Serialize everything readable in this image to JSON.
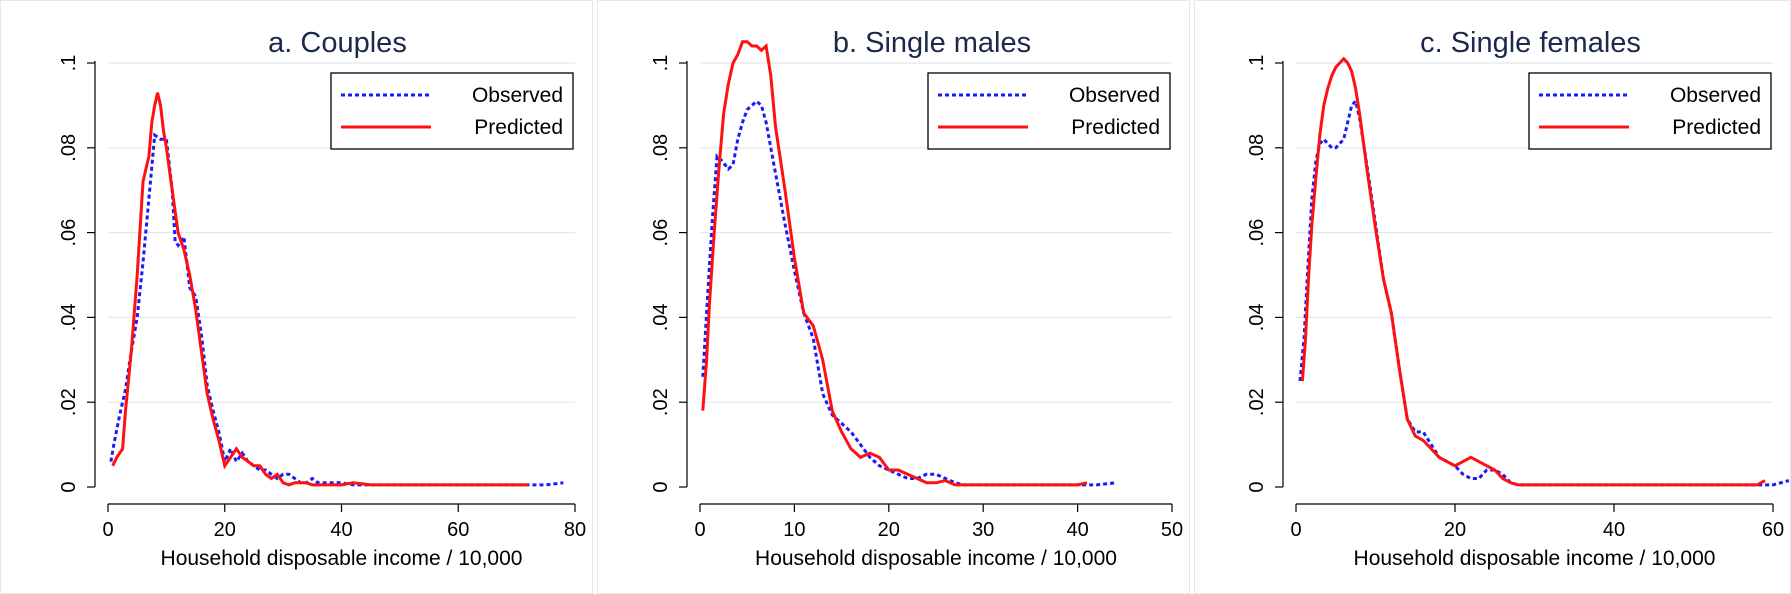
{
  "colors": {
    "observed": "#1a1aff",
    "predicted": "#ff1111",
    "title": "#1b2a4a",
    "grid": "#e3e8ee"
  },
  "chart_data": [
    {
      "type": "line",
      "title": "a. Couples",
      "xlabel": "Household disposable income / 10,000",
      "ylabel": "",
      "xlim": [
        0,
        80
      ],
      "ylim": [
        0,
        0.1
      ],
      "xticks": [
        0,
        20,
        40,
        60,
        80
      ],
      "xtick_labels": [
        "0",
        "20",
        "40",
        "60",
        "80"
      ],
      "yticks": [
        0,
        0.02,
        0.04,
        0.06,
        0.08,
        0.1
      ],
      "ytick_labels": [
        "0",
        ".02",
        ".04",
        ".06",
        ".08",
        ".1"
      ],
      "grid": true,
      "legend_position": "top-right",
      "series": [
        {
          "name": "Observed",
          "style": "dashed",
          "x": [
            0.5,
            1,
            2,
            3,
            4,
            5,
            6,
            7,
            8,
            9,
            10,
            11,
            11.5,
            12,
            13,
            14,
            15,
            16,
            17,
            18,
            19,
            20,
            21,
            22,
            23,
            24,
            25,
            26,
            27,
            28,
            29,
            30,
            31,
            32,
            33,
            34,
            35,
            36,
            38,
            40,
            42,
            45,
            50,
            55,
            60,
            65,
            70,
            75,
            78
          ],
          "y": [
            0.006,
            0.01,
            0.017,
            0.023,
            0.032,
            0.04,
            0.053,
            0.068,
            0.083,
            0.082,
            0.082,
            0.07,
            0.058,
            0.057,
            0.059,
            0.047,
            0.045,
            0.036,
            0.024,
            0.018,
            0.013,
            0.006,
            0.009,
            0.006,
            0.008,
            0.006,
            0.005,
            0.004,
            0.004,
            0.003,
            0.002,
            0.003,
            0.003,
            0.002,
            0.001,
            0.001,
            0.002,
            0.001,
            0.001,
            0.001,
            0.0005,
            0.0005,
            0.0005,
            0.0005,
            0.0005,
            0.0005,
            0.0005,
            0.0005,
            0.001
          ]
        },
        {
          "name": "Predicted",
          "style": "solid",
          "x": [
            0.8,
            1.5,
            2.5,
            3,
            4,
            5,
            6,
            6.5,
            7,
            7.5,
            8,
            8.5,
            9,
            9.5,
            10,
            11,
            12,
            13,
            14,
            15,
            16,
            17,
            18,
            19,
            20,
            21,
            22,
            23,
            24,
            25,
            26,
            27,
            28,
            29,
            30,
            31,
            32,
            33,
            34,
            35,
            36,
            38,
            40,
            42,
            45,
            50,
            55,
            60,
            65,
            70,
            72
          ],
          "y": [
            0.005,
            0.007,
            0.009,
            0.018,
            0.032,
            0.05,
            0.072,
            0.075,
            0.078,
            0.086,
            0.09,
            0.093,
            0.09,
            0.084,
            0.08,
            0.07,
            0.06,
            0.056,
            0.05,
            0.042,
            0.032,
            0.022,
            0.016,
            0.011,
            0.005,
            0.007,
            0.009,
            0.007,
            0.006,
            0.005,
            0.005,
            0.003,
            0.002,
            0.003,
            0.001,
            0.0005,
            0.001,
            0.001,
            0.001,
            0.0005,
            0.0005,
            0.0005,
            0.0005,
            0.001,
            0.0005,
            0.0005,
            0.0005,
            0.0005,
            0.0005,
            0.0005,
            0.0005
          ]
        }
      ]
    },
    {
      "type": "line",
      "title": "b. Single males",
      "xlabel": "Household disposable income / 10,000",
      "ylabel": "",
      "xlim": [
        0,
        50
      ],
      "ylim": [
        0,
        0.1
      ],
      "xticks": [
        0,
        10,
        20,
        30,
        40,
        50
      ],
      "xtick_labels": [
        "0",
        "10",
        "20",
        "30",
        "40",
        "50"
      ],
      "yticks": [
        0,
        0.02,
        0.04,
        0.06,
        0.08,
        0.1
      ],
      "ytick_labels": [
        "0",
        ".02",
        ".04",
        ".06",
        ".08",
        ".1"
      ],
      "grid": true,
      "legend_position": "top-right",
      "series": [
        {
          "name": "Observed",
          "style": "dashed",
          "x": [
            0.3,
            0.8,
            1.3,
            1.8,
            2.3,
            3,
            3.5,
            4,
            4.5,
            5,
            5.5,
            6,
            6.5,
            7,
            7.5,
            8,
            9,
            10,
            11,
            12,
            13,
            14,
            15,
            16,
            17,
            18,
            19,
            20,
            21,
            22,
            23,
            24,
            25,
            26,
            27,
            28,
            30,
            32,
            35,
            38,
            40,
            42,
            44
          ],
          "y": [
            0.026,
            0.045,
            0.063,
            0.078,
            0.077,
            0.075,
            0.076,
            0.082,
            0.086,
            0.089,
            0.09,
            0.091,
            0.09,
            0.086,
            0.08,
            0.074,
            0.062,
            0.051,
            0.041,
            0.035,
            0.022,
            0.017,
            0.015,
            0.013,
            0.01,
            0.007,
            0.005,
            0.004,
            0.003,
            0.002,
            0.002,
            0.003,
            0.003,
            0.002,
            0.001,
            0.0005,
            0.0005,
            0.0005,
            0.0005,
            0.0005,
            0.0005,
            0.0005,
            0.001
          ]
        },
        {
          "name": "Predicted",
          "style": "solid",
          "x": [
            0.3,
            0.7,
            1,
            1.5,
            2,
            2.5,
            3,
            3.5,
            4,
            4.5,
            5,
            5.5,
            6,
            6.5,
            7,
            7.5,
            8,
            9,
            10,
            11,
            12,
            13,
            14,
            15,
            16,
            17,
            18,
            19,
            20,
            21,
            22,
            23,
            24,
            25,
            26,
            27,
            28,
            30,
            32,
            35,
            38,
            40,
            41
          ],
          "y": [
            0.018,
            0.03,
            0.043,
            0.06,
            0.075,
            0.088,
            0.095,
            0.1,
            0.102,
            0.105,
            0.105,
            0.104,
            0.104,
            0.103,
            0.104,
            0.097,
            0.085,
            0.07,
            0.054,
            0.041,
            0.038,
            0.03,
            0.018,
            0.013,
            0.009,
            0.007,
            0.008,
            0.007,
            0.004,
            0.004,
            0.003,
            0.002,
            0.001,
            0.001,
            0.0015,
            0.0005,
            0.0005,
            0.0005,
            0.0005,
            0.0005,
            0.0005,
            0.0005,
            0.001
          ]
        }
      ]
    },
    {
      "type": "line",
      "title": "c. Single females",
      "xlabel": "Household disposable income / 10,000",
      "ylabel": "",
      "xlim": [
        0,
        60
      ],
      "ylim": [
        0,
        0.1
      ],
      "xticks": [
        0,
        20,
        40,
        60
      ],
      "xtick_labels": [
        "0",
        "20",
        "40",
        "60"
      ],
      "yticks": [
        0,
        0.02,
        0.04,
        0.06,
        0.08,
        0.1
      ],
      "ytick_labels": [
        "0",
        ".02",
        ".04",
        ".06",
        ".08",
        ".1"
      ],
      "grid": true,
      "legend_position": "top-right",
      "series": [
        {
          "name": "Observed",
          "style": "dashed",
          "x": [
            0.5,
            1,
            1.5,
            2,
            2.5,
            3,
            3.5,
            4,
            4.5,
            5,
            5.5,
            6,
            6.5,
            7,
            7.5,
            8,
            9,
            10,
            11,
            12,
            13,
            14,
            15,
            16,
            17,
            18,
            19,
            20,
            21,
            22,
            23,
            24,
            25,
            26,
            27,
            28,
            30,
            35,
            40,
            45,
            50,
            55,
            58,
            60,
            62
          ],
          "y": [
            0.025,
            0.035,
            0.052,
            0.068,
            0.077,
            0.081,
            0.082,
            0.081,
            0.08,
            0.08,
            0.081,
            0.082,
            0.086,
            0.09,
            0.091,
            0.087,
            0.075,
            0.062,
            0.049,
            0.041,
            0.028,
            0.016,
            0.013,
            0.013,
            0.01,
            0.007,
            0.006,
            0.005,
            0.003,
            0.002,
            0.002,
            0.004,
            0.004,
            0.003,
            0.001,
            0.0005,
            0.0005,
            0.0005,
            0.0005,
            0.0005,
            0.0005,
            0.0005,
            0.0005,
            0.0005,
            0.0015
          ]
        },
        {
          "name": "Predicted",
          "style": "solid",
          "x": [
            0.8,
            1.2,
            1.6,
            2,
            2.5,
            3,
            3.5,
            4,
            4.5,
            5,
            5.5,
            6,
            6.5,
            7,
            7.5,
            8,
            9,
            10,
            11,
            12,
            13,
            14,
            15,
            16,
            17,
            18,
            19,
            20,
            21,
            22,
            23,
            24,
            25,
            26,
            27,
            28,
            30,
            35,
            40,
            45,
            50,
            55,
            58,
            59
          ],
          "y": [
            0.025,
            0.035,
            0.05,
            0.062,
            0.073,
            0.083,
            0.09,
            0.094,
            0.097,
            0.099,
            0.1,
            0.101,
            0.1,
            0.098,
            0.094,
            0.088,
            0.074,
            0.061,
            0.049,
            0.041,
            0.028,
            0.016,
            0.012,
            0.011,
            0.009,
            0.007,
            0.006,
            0.005,
            0.006,
            0.007,
            0.006,
            0.005,
            0.004,
            0.002,
            0.001,
            0.0005,
            0.0005,
            0.0005,
            0.0005,
            0.0005,
            0.0005,
            0.0005,
            0.0005,
            0.0015
          ]
        }
      ]
    }
  ]
}
